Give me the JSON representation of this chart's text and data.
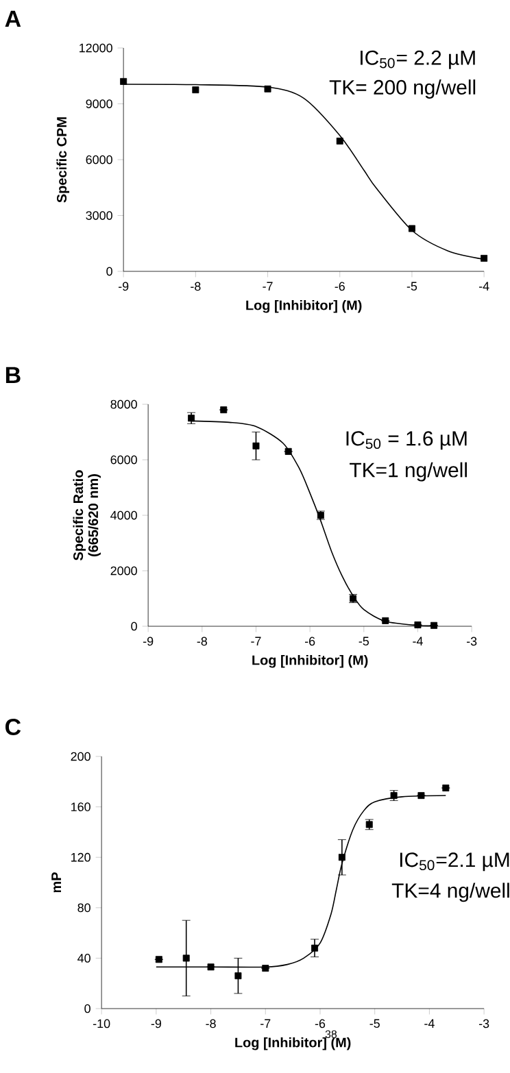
{
  "chart_data": [
    {
      "type": "scatter",
      "title": "A",
      "xlabel": "Log [Inhibitor] (M)",
      "ylabel": "Specific CPM",
      "xlim": [
        -9,
        -4
      ],
      "ylim": [
        0,
        12000
      ],
      "xticks": [
        -9,
        -8,
        -7,
        -6,
        -5,
        -4
      ],
      "yticks": [
        0,
        3000,
        6000,
        9000,
        12000
      ],
      "line_style": "solid",
      "annotations": [
        "IC$_{50}$= 2.2 µM",
        "TK= 200 ng/well"
      ],
      "series": [
        {
          "marker": "square",
          "color": "#000000",
          "x": [
            -9,
            -8,
            -7,
            -6,
            -5,
            -4
          ],
          "values": [
            10200,
            9750,
            9800,
            7000,
            2300,
            700
          ]
        },
        {
          "type": "line",
          "marker": "none",
          "color": "#000000",
          "x": [
            -9,
            -8,
            -7,
            -6.5,
            -6,
            -5.66,
            -5.5,
            -5,
            -4.5,
            -4
          ],
          "values": [
            10050,
            10030,
            9900,
            9300,
            7300,
            5400,
            4500,
            2200,
            1100,
            650
          ]
        }
      ]
    },
    {
      "type": "scatter",
      "title": "B",
      "xlabel": "Log [Inhibitor] (M)",
      "ylabel": "Specific Ratio (665/620 nm)",
      "xlim": [
        -9,
        -3
      ],
      "ylim": [
        0,
        8000
      ],
      "xticks": [
        -9,
        -8,
        -7,
        -6,
        -5,
        -4,
        -3
      ],
      "yticks": [
        0,
        2000,
        4000,
        6000,
        8000
      ],
      "line_style": "solid",
      "annotations": [
        "IC$_{50}$ = 1.6 µM",
        "TK=1 ng/well"
      ],
      "series": [
        {
          "marker": "square",
          "color": "#000000",
          "x": [
            -8.2,
            -7.6,
            -7,
            -6.4,
            -5.8,
            -5.2,
            -4.6,
            -4,
            -3.7
          ],
          "values": [
            7500,
            7800,
            6500,
            6300,
            4000,
            1000,
            200,
            50,
            30
          ],
          "errors": [
            200,
            null,
            500,
            null,
            150,
            150,
            null,
            null,
            null
          ]
        },
        {
          "type": "line",
          "marker": "none",
          "color": "#000000",
          "x": [
            -8.2,
            -7.5,
            -7,
            -6.5,
            -6.2,
            -6,
            -5.8,
            -5.6,
            -5.4,
            -5.2,
            -5,
            -4.6,
            -4,
            -3.7
          ],
          "values": [
            7400,
            7350,
            7200,
            6600,
            5700,
            4800,
            3800,
            2700,
            1800,
            1100,
            600,
            180,
            30,
            20
          ]
        }
      ]
    },
    {
      "type": "scatter",
      "title": "C",
      "xlabel": "Log [Inhibitor] (M)",
      "ylabel": "mP",
      "xlim": [
        -10,
        -3
      ],
      "ylim": [
        0,
        200
      ],
      "xticks": [
        -10,
        -9,
        -8,
        -7,
        -6,
        -5,
        -4,
        -3
      ],
      "yticks": [
        0,
        40,
        80,
        120,
        160,
        200
      ],
      "line_style": "solid",
      "annotations": [
        "IC$_{50}$=2.1 µM",
        "TK=4 ng/well",
        "38"
      ],
      "series": [
        {
          "marker": "square",
          "color": "#000000",
          "x": [
            -8.95,
            -8.45,
            -8,
            -7.5,
            -7,
            -6.1,
            -5.6,
            -5.1,
            -4.65,
            -4.15,
            -3.7
          ],
          "values": [
            39,
            40,
            33,
            26,
            32,
            48,
            120,
            146,
            169,
            169,
            175
          ],
          "errors": [
            null,
            30,
            null,
            14,
            null,
            7,
            14,
            4,
            4,
            null,
            null
          ]
        },
        {
          "type": "line",
          "marker": "none",
          "color": "#000000",
          "x": [
            -9,
            -8,
            -7,
            -6.6,
            -6.3,
            -6,
            -5.8,
            -5.7,
            -5.6,
            -5.4,
            -5.2,
            -5,
            -4.5,
            -3.7
          ],
          "values": [
            33,
            33,
            33,
            35,
            40,
            52,
            75,
            95,
            115,
            142,
            157,
            164,
            168,
            169
          ]
        }
      ]
    }
  ]
}
